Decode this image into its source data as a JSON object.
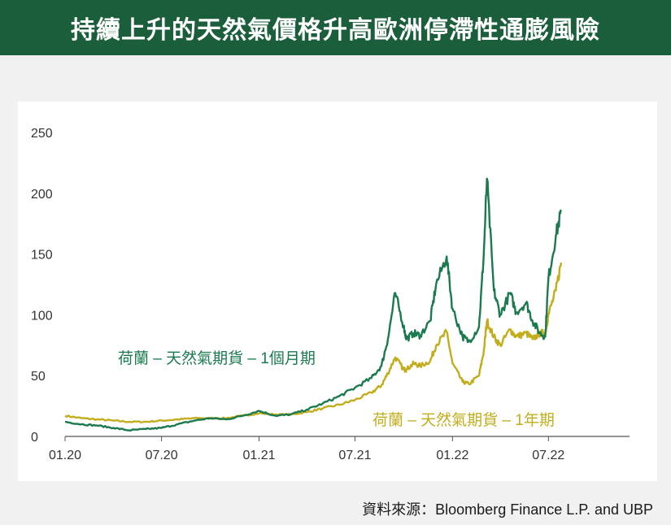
{
  "header": {
    "title": "持續上升的天然氣價格升高歐洲停滯性通膨風險"
  },
  "source": "資料來源：Bloomberg Finance L.P. and UBP",
  "colors": {
    "title_bg": "#1b5e3b",
    "series_monthly": "#1b7a4e",
    "series_yearly": "#c2ad1c",
    "axis": "#555555"
  },
  "chart_data": {
    "type": "line",
    "title": "",
    "xlabel": "",
    "ylabel": "",
    "ylim": [
      0,
      250
    ],
    "xlim": [
      "2020-01",
      "2022-12"
    ],
    "y_ticks": [
      "250",
      "200",
      "150",
      "100",
      "50",
      "0"
    ],
    "x_ticks": [
      "01.20",
      "07.20",
      "01.21",
      "07.21",
      "01.22",
      "07.22"
    ],
    "grid": false,
    "series": [
      {
        "name": "荷蘭 – 天然氣期貨 – 1個月期",
        "color": "#1b7a4e",
        "x": [
          "2020-01",
          "2020-02",
          "2020-03",
          "2020-04",
          "2020-05",
          "2020-06",
          "2020-07",
          "2020-08",
          "2020-09",
          "2020-10",
          "2020-11",
          "2020-12",
          "2021-01",
          "2021-02",
          "2021-03",
          "2021-04",
          "2021-05",
          "2021-06",
          "2021-07",
          "2021-08",
          "2021-08-20",
          "2021-09",
          "2021-09-15",
          "2021-10",
          "2021-10-06",
          "2021-10-20",
          "2021-11",
          "2021-11-20",
          "2021-12",
          "2021-12-21",
          "2022-01",
          "2022-01-20",
          "2022-02",
          "2022-02-20",
          "2022-03",
          "2022-03-07",
          "2022-03-20",
          "2022-04",
          "2022-04-20",
          "2022-05",
          "2022-05-20",
          "2022-06",
          "2022-06-15",
          "2022-06-25",
          "2022-07",
          "2022-07-15",
          "2022-07-25"
        ],
        "values": [
          12,
          10,
          9,
          7,
          5,
          6,
          7,
          10,
          13,
          15,
          14,
          17,
          21,
          17,
          18,
          22,
          27,
          33,
          40,
          48,
          58,
          80,
          118,
          90,
          80,
          85,
          83,
          95,
          125,
          148,
          105,
          82,
          78,
          90,
          150,
          212,
          120,
          100,
          118,
          102,
          110,
          95,
          85,
          82,
          130,
          165,
          185
        ]
      },
      {
        "name": "荷蘭 – 天然氣期貨 – 1年期",
        "color": "#c2ad1c",
        "x": [
          "2020-01",
          "2020-02",
          "2020-03",
          "2020-04",
          "2020-05",
          "2020-06",
          "2020-07",
          "2020-08",
          "2020-09",
          "2020-10",
          "2020-11",
          "2020-12",
          "2021-01",
          "2021-02",
          "2021-03",
          "2021-04",
          "2021-05",
          "2021-06",
          "2021-07",
          "2021-08",
          "2021-08-20",
          "2021-09",
          "2021-09-15",
          "2021-10",
          "2021-10-06",
          "2021-10-20",
          "2021-11",
          "2021-11-20",
          "2021-12",
          "2021-12-21",
          "2022-01",
          "2022-01-20",
          "2022-02",
          "2022-02-20",
          "2022-03",
          "2022-03-07",
          "2022-03-20",
          "2022-04",
          "2022-04-20",
          "2022-05",
          "2022-05-20",
          "2022-06",
          "2022-06-15",
          "2022-06-25",
          "2022-07",
          "2022-07-15",
          "2022-07-25"
        ],
        "values": [
          17,
          15,
          14,
          13,
          12,
          12,
          13,
          14,
          15,
          15,
          15,
          17,
          19,
          18,
          18,
          20,
          23,
          26,
          30,
          36,
          42,
          52,
          65,
          55,
          55,
          60,
          58,
          62,
          75,
          86,
          60,
          45,
          43,
          50,
          70,
          95,
          82,
          75,
          88,
          82,
          85,
          80,
          85,
          85,
          100,
          120,
          143
        ]
      }
    ],
    "annotations": [
      {
        "text": "荷蘭 – 天然氣期貨 – 1個月期",
        "series": 0
      },
      {
        "text": "荷蘭 – 天然氣期貨 – 1年期",
        "series": 1
      }
    ]
  }
}
